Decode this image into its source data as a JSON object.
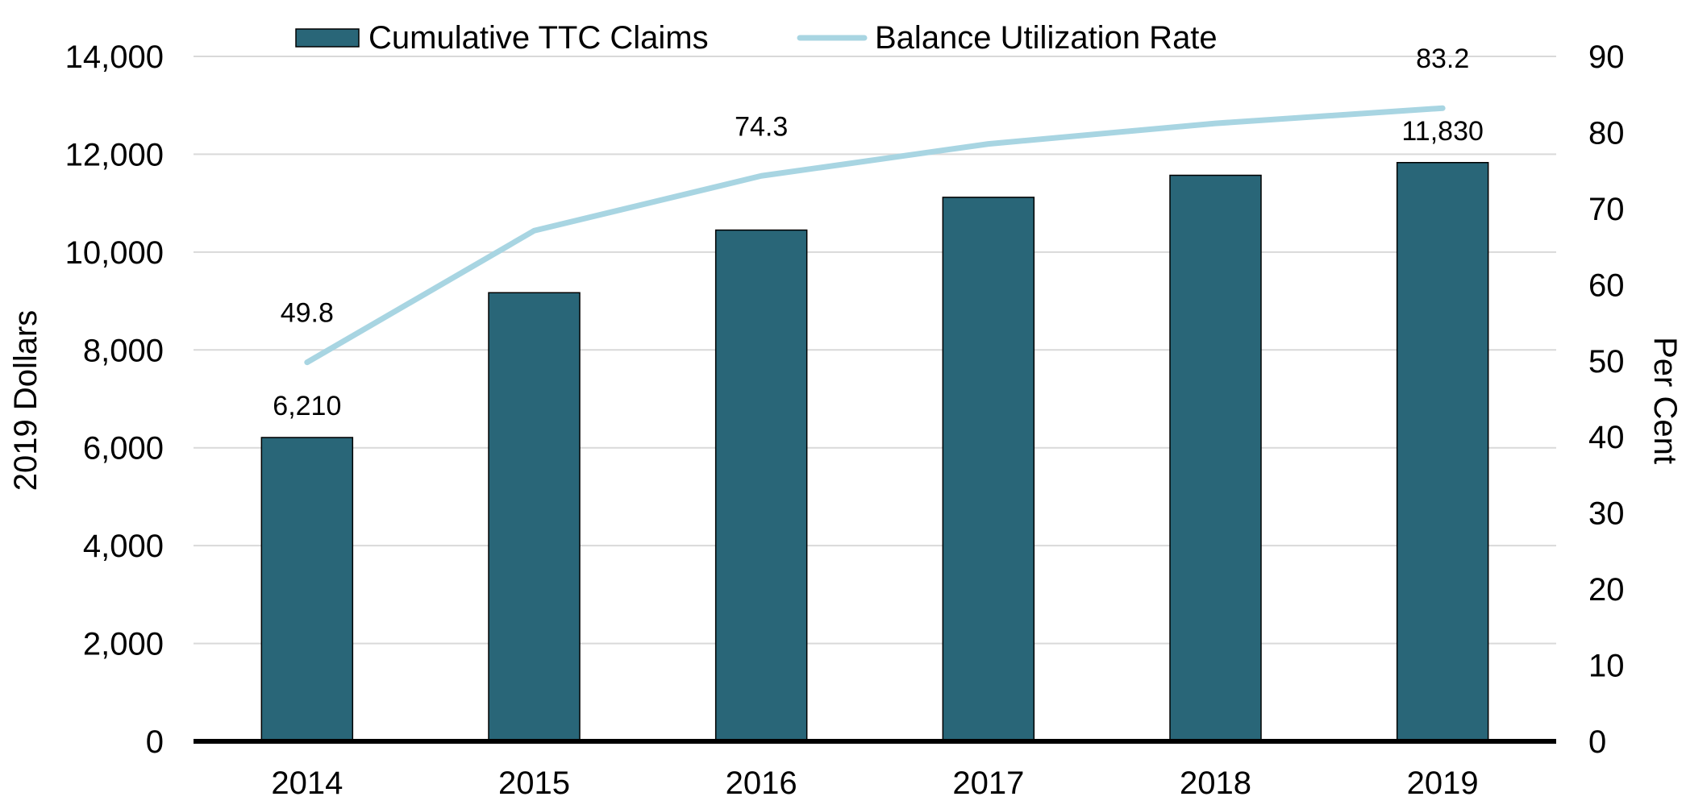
{
  "chart_data": {
    "type": "bar",
    "categories": [
      "2014",
      "2015",
      "2016",
      "2017",
      "2018",
      "2019"
    ],
    "series": [
      {
        "name": "Cumulative TTC Claims",
        "type": "bar",
        "axis": "left",
        "color": "#296678",
        "values": [
          6210,
          9170,
          10450,
          11120,
          11570,
          11830
        ],
        "data_labels": [
          "6,210",
          null,
          null,
          null,
          null,
          "11,830"
        ]
      },
      {
        "name": "Balance Utilization Rate",
        "type": "line",
        "axis": "right",
        "color": "#a8d5e2",
        "values": [
          49.8,
          67.1,
          74.3,
          78.5,
          81.2,
          83.2
        ],
        "data_labels": [
          "49.8",
          null,
          "74.3",
          null,
          null,
          "83.2"
        ]
      }
    ],
    "ylabel": "2019 Dollars",
    "ylim": [
      0,
      14000
    ],
    "yticks": [
      "0",
      "2,000",
      "4,000",
      "6,000",
      "8,000",
      "10,000",
      "12,000",
      "14,000"
    ],
    "y2label": "Per Cent",
    "y2lim": [
      0,
      90
    ],
    "y2ticks": [
      "0",
      "10",
      "20",
      "30",
      "40",
      "50",
      "60",
      "70",
      "80",
      "90"
    ],
    "grid": true,
    "legend_position": "top"
  }
}
